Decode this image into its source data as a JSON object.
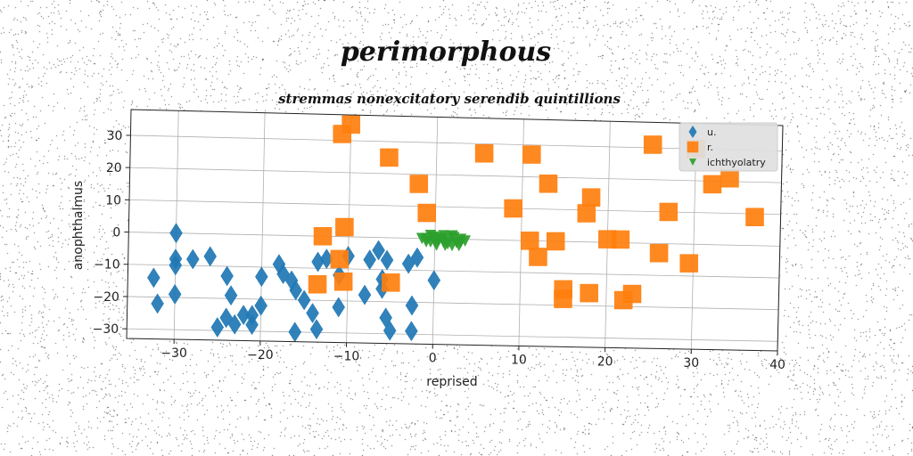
{
  "chart_data": {
    "type": "scatter",
    "suptitle": "perimorphous",
    "title": "stremmas nonexcitatory serendib quintillions",
    "xlabel": "reprised",
    "ylabel": "anophthalmus",
    "xlim": [
      -35.5,
      40
    ],
    "ylim": [
      -33,
      38
    ],
    "xticks": [
      -30,
      -20,
      -10,
      0,
      10,
      20,
      30,
      40
    ],
    "yticks": [
      -30,
      -20,
      -10,
      0,
      10,
      20,
      30
    ],
    "grid": true,
    "legend_position": "top-right",
    "series": [
      {
        "name": "u.",
        "marker": "diamond",
        "color": "#1f77b4",
        "points": [
          [
            -30,
            0
          ],
          [
            -30,
            -8
          ],
          [
            -30,
            -10
          ],
          [
            -28,
            -8
          ],
          [
            -26,
            -7
          ],
          [
            -32.5,
            -14
          ],
          [
            -32,
            -22
          ],
          [
            -30,
            -19
          ],
          [
            -24,
            -13
          ],
          [
            -23.5,
            -19
          ],
          [
            -22,
            -25
          ],
          [
            -24,
            -26
          ],
          [
            -23,
            -28
          ],
          [
            -25,
            -29
          ],
          [
            -21,
            -25
          ],
          [
            -21,
            -28
          ],
          [
            -20,
            -22
          ],
          [
            -20,
            -13
          ],
          [
            -18,
            -9
          ],
          [
            -17.5,
            -12
          ],
          [
            -16.5,
            -14
          ],
          [
            -16,
            -17
          ],
          [
            -15,
            -20
          ],
          [
            -16,
            -30
          ],
          [
            -14,
            -24
          ],
          [
            -13.5,
            -29
          ],
          [
            -13.5,
            -8
          ],
          [
            -12.5,
            -7
          ],
          [
            -11,
            -22
          ],
          [
            -11,
            -12
          ],
          [
            -10,
            -6
          ],
          [
            -8,
            -18
          ],
          [
            -7.5,
            -7
          ],
          [
            -6.5,
            -4
          ],
          [
            -5.5,
            -7
          ],
          [
            -6,
            -13
          ],
          [
            -6,
            -16
          ],
          [
            -5.5,
            -25
          ],
          [
            -5,
            -29
          ],
          [
            -2.5,
            -21
          ],
          [
            -2.5,
            -29
          ],
          [
            -3,
            -8
          ],
          [
            -2,
            -6
          ],
          [
            0,
            -13
          ]
        ]
      },
      {
        "name": "r.",
        "marker": "square",
        "color": "#ff7f0e",
        "points": [
          [
            -10,
            35
          ],
          [
            -11,
            32
          ],
          [
            -5.5,
            25
          ],
          [
            -2,
            17
          ],
          [
            -1,
            8
          ],
          [
            -13,
            0
          ],
          [
            -10.5,
            3
          ],
          [
            -11,
            -7
          ],
          [
            -13.5,
            -15
          ],
          [
            -10.5,
            -14
          ],
          [
            -5,
            -14
          ],
          [
            5.5,
            27
          ],
          [
            11,
            27
          ],
          [
            13,
            18
          ],
          [
            9,
            10
          ],
          [
            11,
            0
          ],
          [
            12,
            -5
          ],
          [
            14,
            0
          ],
          [
            18,
            14
          ],
          [
            17.5,
            9
          ],
          [
            15,
            -15
          ],
          [
            15,
            -18
          ],
          [
            18,
            -16
          ],
          [
            20,
            1
          ],
          [
            21.5,
            1
          ],
          [
            22,
            -18
          ],
          [
            23,
            -16
          ],
          [
            25,
            31
          ],
          [
            26,
            -3
          ],
          [
            27,
            10
          ],
          [
            29.5,
            -6
          ],
          [
            30,
            30
          ],
          [
            32,
            19
          ],
          [
            34,
            21
          ],
          [
            37,
            9
          ]
        ]
      },
      {
        "name": "ichthyolatry",
        "marker": "triangle-down",
        "color": "#2ca02c",
        "points": [
          [
            -1,
            0
          ],
          [
            -0.5,
            -1
          ],
          [
            0,
            -1
          ],
          [
            0.5,
            0
          ],
          [
            1,
            -1
          ],
          [
            1.5,
            0
          ],
          [
            2,
            -2
          ],
          [
            2.5,
            -1
          ],
          [
            3,
            0
          ],
          [
            -0.5,
            1
          ],
          [
            1,
            1
          ],
          [
            2,
            1
          ],
          [
            1.2,
            -2
          ],
          [
            0.2,
            -2
          ],
          [
            -1,
            -1
          ],
          [
            3,
            -1
          ],
          [
            2.2,
            0.5
          ],
          [
            -0.2,
            0.5
          ],
          [
            1.5,
            -1.5
          ],
          [
            0.8,
            0.2
          ],
          [
            2.8,
            -2
          ],
          [
            -1.5,
            0
          ],
          [
            3.5,
            -0.5
          ],
          [
            0.4,
            -0.5
          ]
        ]
      }
    ]
  }
}
